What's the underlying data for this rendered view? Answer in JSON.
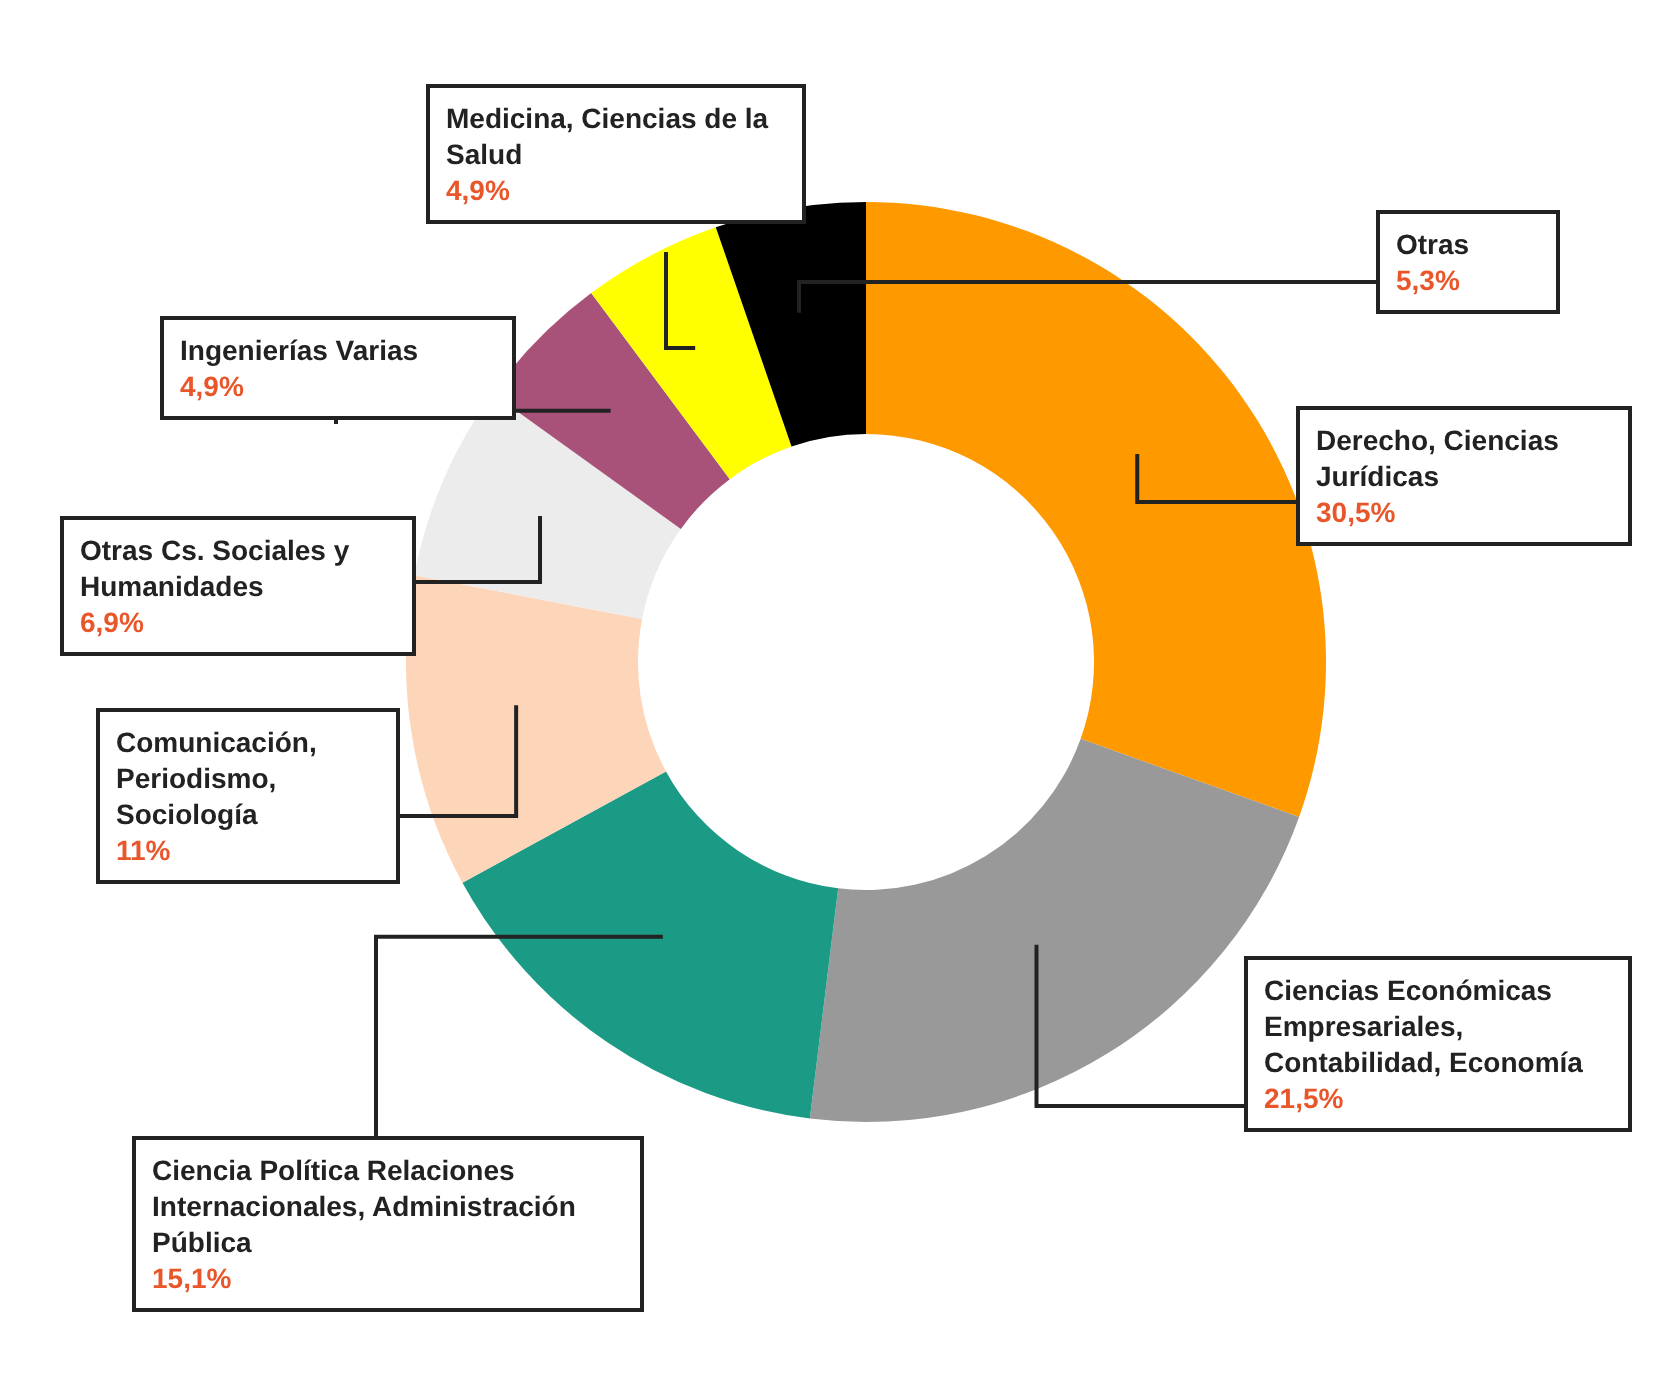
{
  "chart_data": {
    "type": "donut",
    "categories": [
      "Derecho, Ciencias Jurídicas",
      "Ciencias Económicas Empresariales, Contabilidad, Economía",
      "Ciencia Política Relaciones Internacionales, Administración Pública",
      "Comunicación, Periodismo, Sociología",
      "Otras Cs. Sociales y Humanidades",
      "Ingenierías Varias",
      "Medicina, Ciencias de la Salud",
      "Otras"
    ],
    "values": [
      30.5,
      21.5,
      15.1,
      11,
      6.9,
      4.9,
      4.9,
      5.3
    ],
    "value_labels": [
      "30,5%",
      "21,5%",
      "15,1%",
      "11%",
      "6,9%",
      "4,9%",
      "4,9%",
      "5,3%"
    ],
    "colors": [
      "#ff9900",
      "#999999",
      "#1b9a86",
      "#fdd5b9",
      "#ececec",
      "#a8527a",
      "#ffff00",
      "#000000"
    ]
  }
}
